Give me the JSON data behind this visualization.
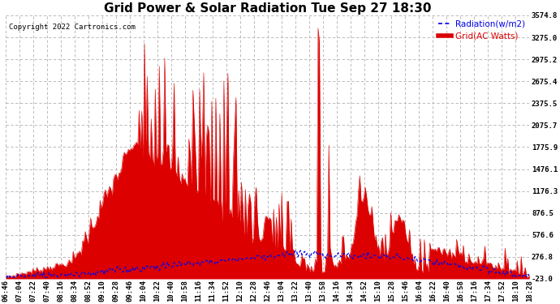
{
  "title": "Grid Power & Solar Radiation Tue Sep 27 18:30",
  "copyright": "Copyright 2022 Cartronics.com",
  "legend_radiation": "Radiation(w/m2)",
  "legend_grid": "Grid(AC Watts)",
  "ylabel_right_values": [
    3574.8,
    3275.0,
    2975.2,
    2675.4,
    2375.5,
    2075.7,
    1775.9,
    1476.1,
    1176.3,
    876.5,
    576.6,
    276.8,
    -23.0
  ],
  "ylim": [
    -23.0,
    3574.8
  ],
  "bg_color": "#ffffff",
  "grid_color": "#b0b0b0",
  "red_color": "#dd0000",
  "blue_color": "#0000ee",
  "title_fontsize": 11,
  "tick_fontsize": 6.5,
  "time_labels": [
    "06:46",
    "07:04",
    "07:22",
    "07:40",
    "08:16",
    "08:34",
    "08:52",
    "09:10",
    "09:28",
    "09:46",
    "10:04",
    "10:22",
    "10:40",
    "10:58",
    "11:16",
    "11:34",
    "11:52",
    "12:10",
    "12:28",
    "12:46",
    "13:04",
    "13:22",
    "13:40",
    "13:58",
    "14:16",
    "14:34",
    "14:52",
    "15:10",
    "15:28",
    "15:46",
    "16:04",
    "16:22",
    "16:40",
    "16:58",
    "17:16",
    "17:34",
    "17:52",
    "18:10",
    "18:28"
  ]
}
